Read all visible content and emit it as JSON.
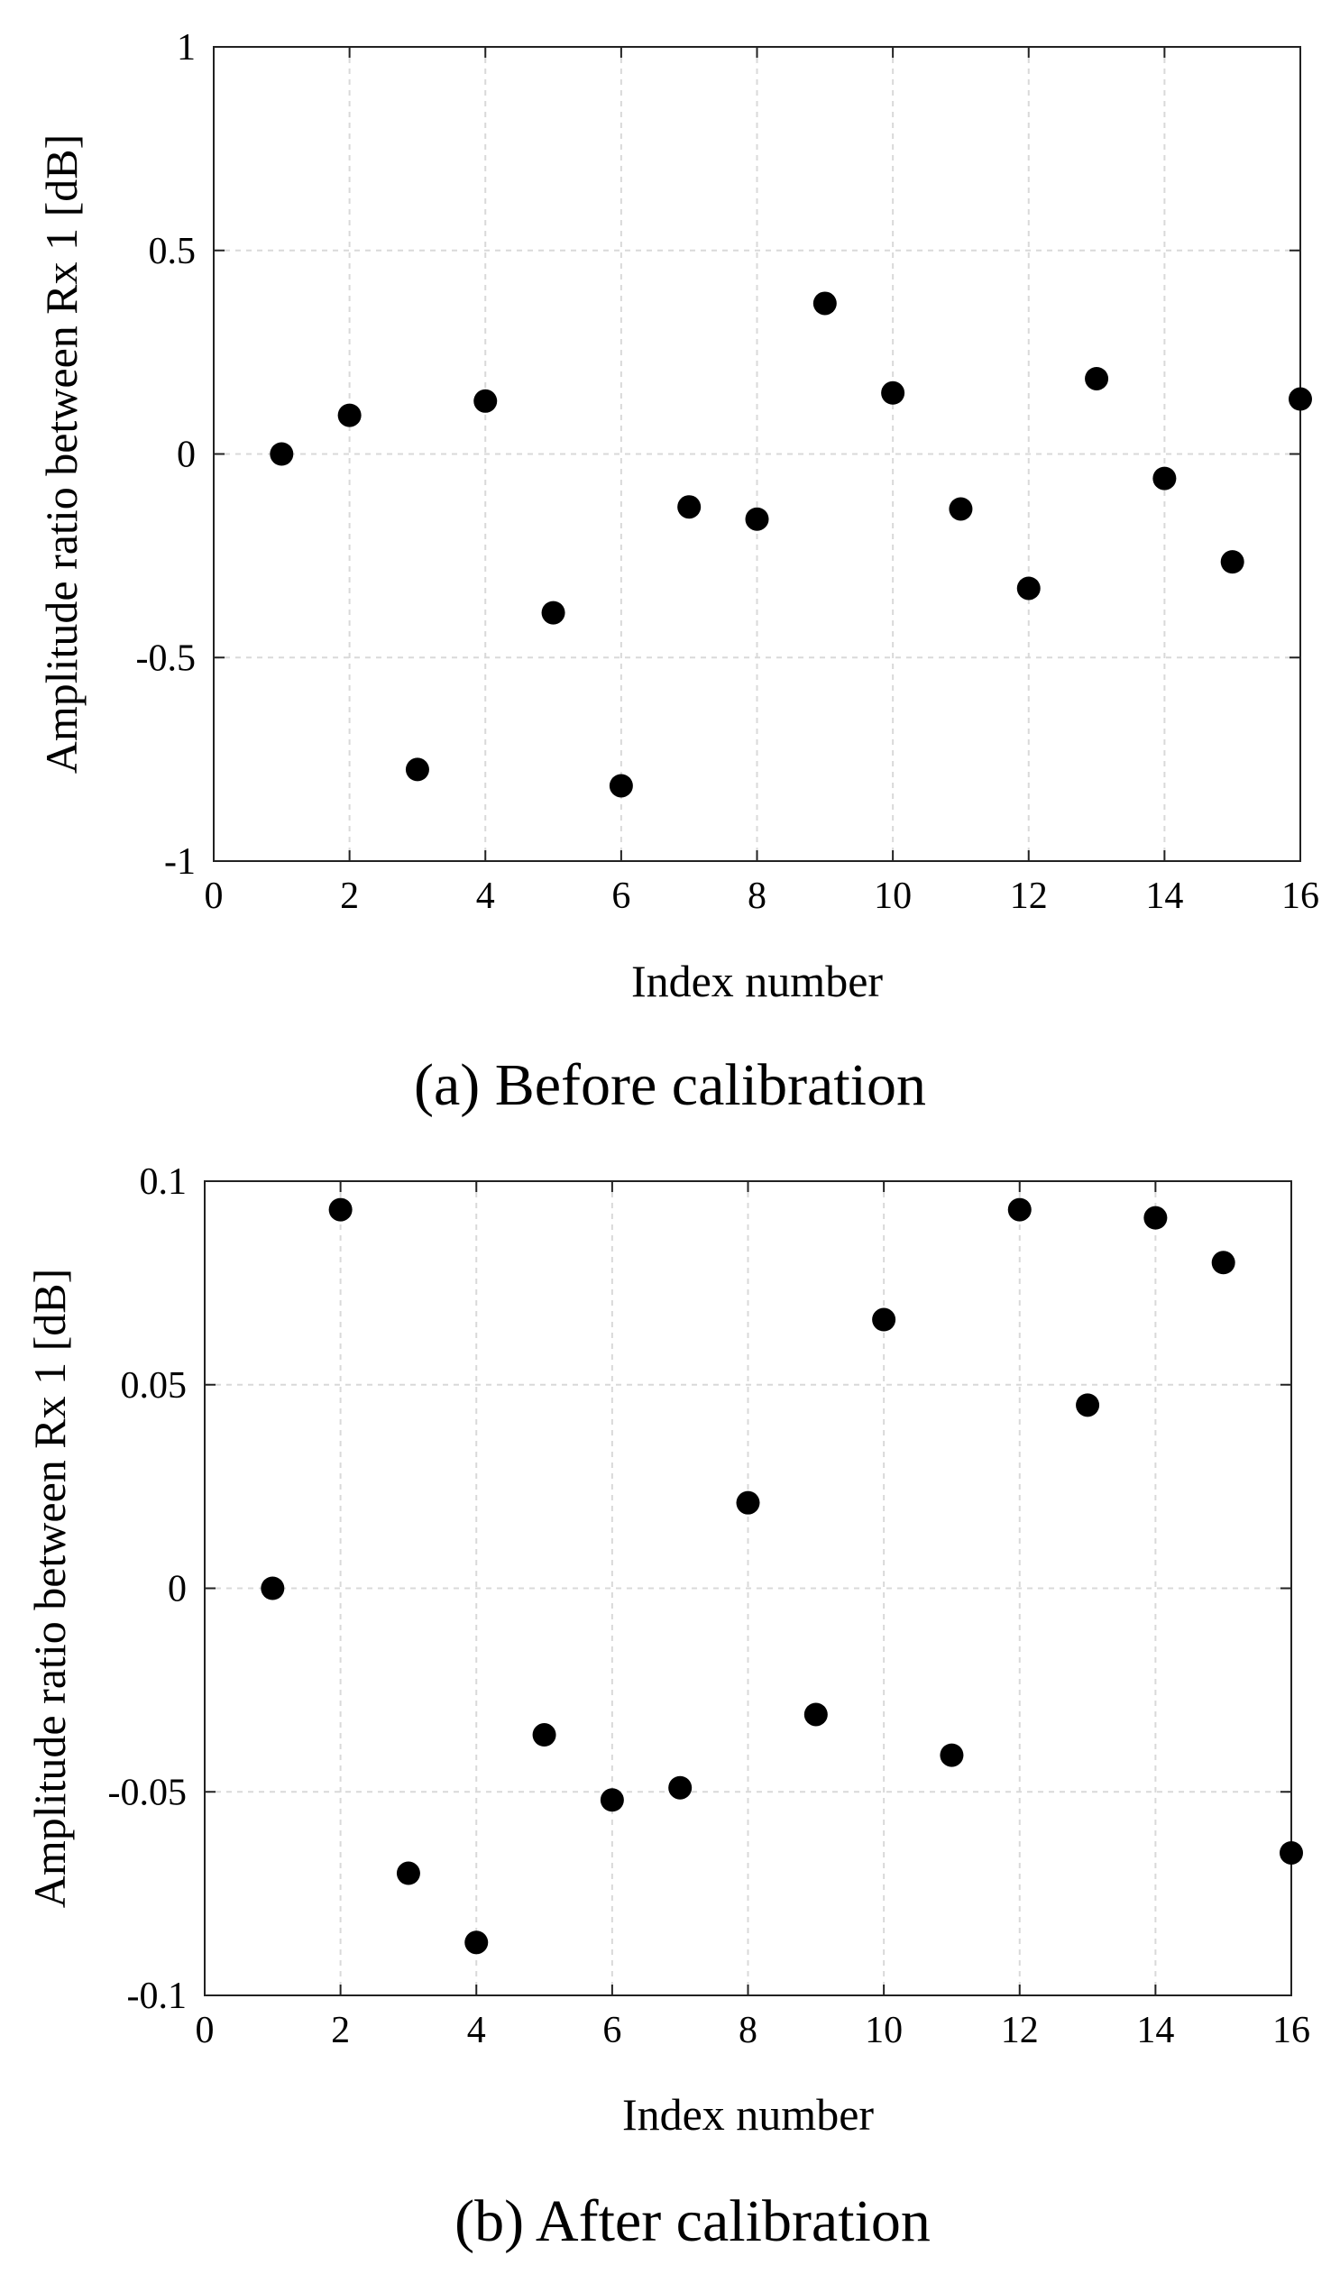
{
  "chart_data": [
    {
      "type": "scatter",
      "caption": "(a) Before calibration",
      "xlabel": "Index number",
      "ylabel": "Amplitude ratio between Rx 1 [dB]",
      "xlim": [
        0,
        16
      ],
      "ylim": [
        -1,
        1
      ],
      "xticks": [
        "0",
        "2",
        "4",
        "6",
        "8",
        "10",
        "12",
        "14",
        "16"
      ],
      "yticks": [
        "-1",
        "-0.5",
        "0",
        "0.5",
        "1"
      ],
      "grid": true,
      "marker_color": "#000000",
      "x": [
        1,
        2,
        3,
        4,
        5,
        6,
        7,
        8,
        9,
        10,
        11,
        12,
        13,
        14,
        15,
        16
      ],
      "y": [
        0.0,
        0.095,
        -0.775,
        0.13,
        -0.39,
        -0.815,
        -0.13,
        -0.16,
        0.37,
        0.15,
        -0.135,
        -0.33,
        0.185,
        -0.06,
        -0.265,
        0.135
      ]
    },
    {
      "type": "scatter",
      "caption": "(b) After calibration",
      "xlabel": "Index number",
      "ylabel": "Amplitude ratio between Rx 1 [dB]",
      "xlim": [
        0,
        16
      ],
      "ylim": [
        -0.1,
        0.1
      ],
      "xticks": [
        "0",
        "2",
        "4",
        "6",
        "8",
        "10",
        "12",
        "14",
        "16"
      ],
      "yticks": [
        "-0.1",
        "-0.05",
        "0",
        "0.05",
        "0.1"
      ],
      "grid": true,
      "marker_color": "#000000",
      "x": [
        1,
        2,
        3,
        4,
        5,
        6,
        7,
        8,
        9,
        10,
        11,
        12,
        13,
        14,
        15,
        16
      ],
      "y": [
        0.0,
        0.093,
        -0.07,
        -0.087,
        -0.036,
        -0.052,
        -0.049,
        0.021,
        -0.031,
        0.066,
        -0.041,
        0.093,
        0.045,
        0.091,
        0.08,
        -0.065
      ]
    }
  ]
}
